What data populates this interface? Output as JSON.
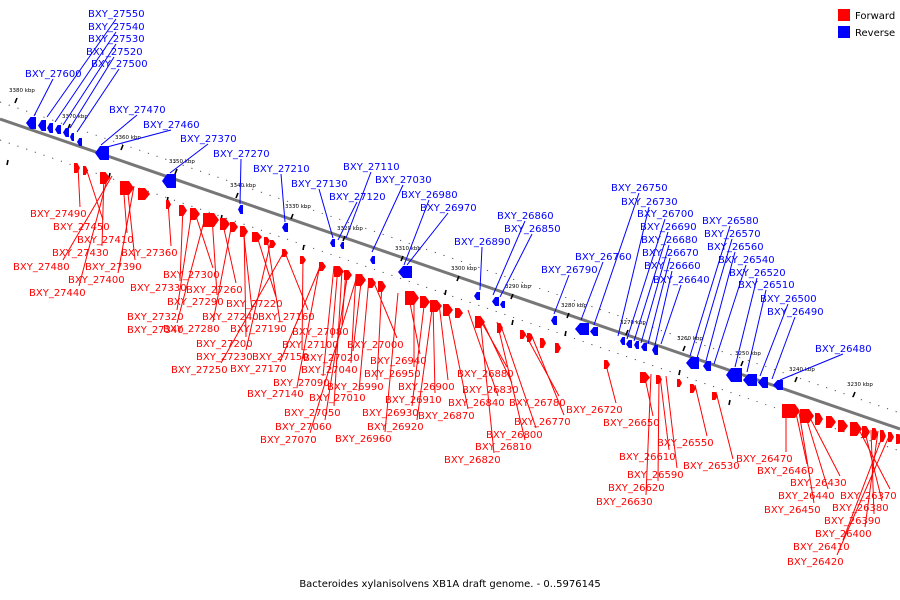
{
  "caption": "Bacteroides xylanisolvens XB1A draft genome. - 0..5976145",
  "legend": [
    {
      "label": "Forward",
      "color": "#ff0000"
    },
    {
      "label": "Reverse",
      "color": "#0000ff"
    }
  ],
  "colors": {
    "forward": "#ff0000",
    "reverse": "#0000ff",
    "backbone": "#777777"
  },
  "ticks": [
    "3380 kbp",
    "3370 kbp",
    "3360 kbp",
    "3350 kbp",
    "3340 kbp",
    "3330 kbp",
    "3320 kbp",
    "3310 kbp",
    "3300 kbp",
    "3290 kbp",
    "3280 kbp",
    "3270 kbp",
    "3260 kbp",
    "3250 kbp",
    "3240 kbp",
    "3230 kbp"
  ],
  "reverse_labels": [
    "BXY_27550",
    "BXY_27540",
    "BXY_27530",
    "BXY_27520",
    "BXY_27500",
    "BXY_27600",
    "BXY_27470",
    "BXY_27460",
    "BXY_27370",
    "BXY_27270",
    "BXY_27210",
    "BXY_27130",
    "BXY_27110",
    "BXY_27030",
    "BXY_27120",
    "BXY_26980",
    "BXY_26970",
    "BXY_26860",
    "BXY_26890",
    "BXY_26850",
    "BXY_26790",
    "BXY_26760",
    "BXY_26750",
    "BXY_26730",
    "BXY_26700",
    "BXY_26690",
    "BXY_26680",
    "BXY_26670",
    "BXY_26660",
    "BXY_26640",
    "BXY_26580",
    "BXY_26570",
    "BXY_26560",
    "BXY_26540",
    "BXY_26520",
    "BXY_26510",
    "BXY_26500",
    "BXY_26490",
    "BXY_26480"
  ],
  "forward_labels": [
    "BXY_27490",
    "BXY_27450",
    "BXY_27430",
    "BXY_27410",
    "BXY_27480",
    "BXY_27440",
    "BXY_27390",
    "BXY_27400",
    "BXY_27360",
    "BXY_27330",
    "BXY_27300",
    "BXY_27320",
    "BXY_27340",
    "BXY_27290",
    "BXY_27260",
    "BXY_27280",
    "BXY_27240",
    "BXY_27220",
    "BXY_27200",
    "BXY_27190",
    "BXY_27160",
    "BXY_27230",
    "BXY_27150",
    "BXY_27250",
    "BXY_27170",
    "BXY_27100",
    "BXY_27080",
    "BXY_27020",
    "BXY_27000",
    "BXY_27140",
    "BXY_27090",
    "BXY_27040",
    "BXY_27050",
    "BXY_27060",
    "BXY_27070",
    "BXY_27010",
    "BXY_26990",
    "BXY_26940",
    "BXY_26950",
    "BXY_26930",
    "BXY_26920",
    "BXY_26960",
    "BXY_26900",
    "BXY_26910",
    "BXY_26880",
    "BXY_26870",
    "BXY_26840",
    "BXY_26830",
    "BXY_26800",
    "BXY_26810",
    "BXY_26820",
    "BXY_26780",
    "BXY_26770",
    "BXY_26720",
    "BXY_26650",
    "BXY_26610",
    "BXY_26590",
    "BXY_26620",
    "BXY_26630",
    "BXY_26550",
    "BXY_26530",
    "BXY_26470",
    "BXY_26460",
    "BXY_26440",
    "BXY_26450",
    "BXY_26430",
    "BXY_26370",
    "BXY_26380",
    "BXY_26390",
    "BXY_26400",
    "BXY_26410",
    "BXY_26420"
  ]
}
